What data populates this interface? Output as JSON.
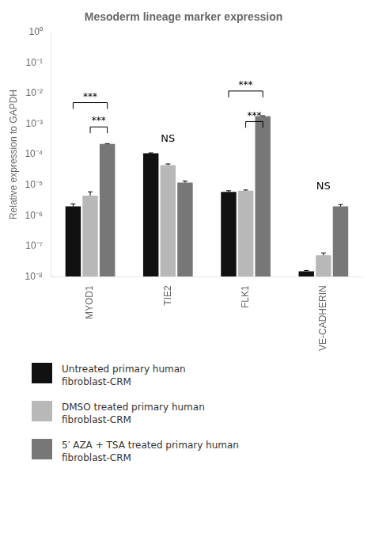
{
  "chart_data": {
    "type": "bar",
    "title": "Mesoderm lineage marker expression",
    "ylabel": "Relative expression to GAPDH",
    "categories": [
      "MYOD1",
      "TIE2",
      "FLK1",
      "VE-CADHERIN"
    ],
    "series": [
      {
        "name": "Untreated primary human\nfibroblast-CRM",
        "color": "#111111",
        "values": [
          2e-06,
          0.00011,
          6e-06,
          1.5e-08
        ],
        "errors": [
          4e-07,
          3e-06,
          5e-07,
          1e-09
        ]
      },
      {
        "name": "DMSO treated primary human\nfibroblast-CRM",
        "color": "#b8b8b8",
        "values": [
          4.5e-06,
          4.5e-05,
          6.5e-06,
          5e-08
        ],
        "errors": [
          1.5e-06,
          4e-06,
          4e-07,
          1e-08
        ]
      },
      {
        "name": "5′ AZA + TSA treated primary human\nfibroblast-CRM",
        "color": "#777777",
        "values": [
          0.00022,
          1.2e-05,
          0.0018,
          2e-06
        ],
        "errors": [
          6e-06,
          1.5e-06,
          6e-05,
          3e-07
        ]
      }
    ],
    "log": "y",
    "ylim": [
      1e-08,
      1
    ],
    "yticks": [
      {
        "value": 1e-08,
        "label": "10⁻⁸"
      },
      {
        "value": 1e-07,
        "label": "10⁻⁷"
      },
      {
        "value": 1e-06,
        "label": "10⁻⁶"
      },
      {
        "value": 1e-05,
        "label": "10⁻⁵"
      },
      {
        "value": 0.0001,
        "label": "10⁻⁴"
      },
      {
        "value": 0.001,
        "label": "10⁻³"
      },
      {
        "value": 0.01,
        "label": "10⁻²"
      },
      {
        "value": 0.1,
        "label": "10⁻¹"
      },
      {
        "value": 1,
        "label": "10⁰"
      }
    ],
    "annotations": [
      {
        "text": "***",
        "category": "MYOD1",
        "y": 0.005,
        "between": [
          0,
          2
        ]
      },
      {
        "text": "***",
        "category": "MYOD1",
        "y": 0.0008,
        "between": [
          1,
          2
        ]
      },
      {
        "text": "NS",
        "category": "TIE2",
        "y": 0.00022
      },
      {
        "text": "***",
        "category": "FLK1",
        "y": 0.012,
        "between": [
          0,
          2
        ]
      },
      {
        "text": "***",
        "category": "FLK1",
        "y": 0.0012,
        "between": [
          1,
          2
        ]
      },
      {
        "text": "NS",
        "category": "VE-CADHERIN",
        "y": 6e-06
      }
    ],
    "grid": false,
    "legend": "bottom"
  }
}
